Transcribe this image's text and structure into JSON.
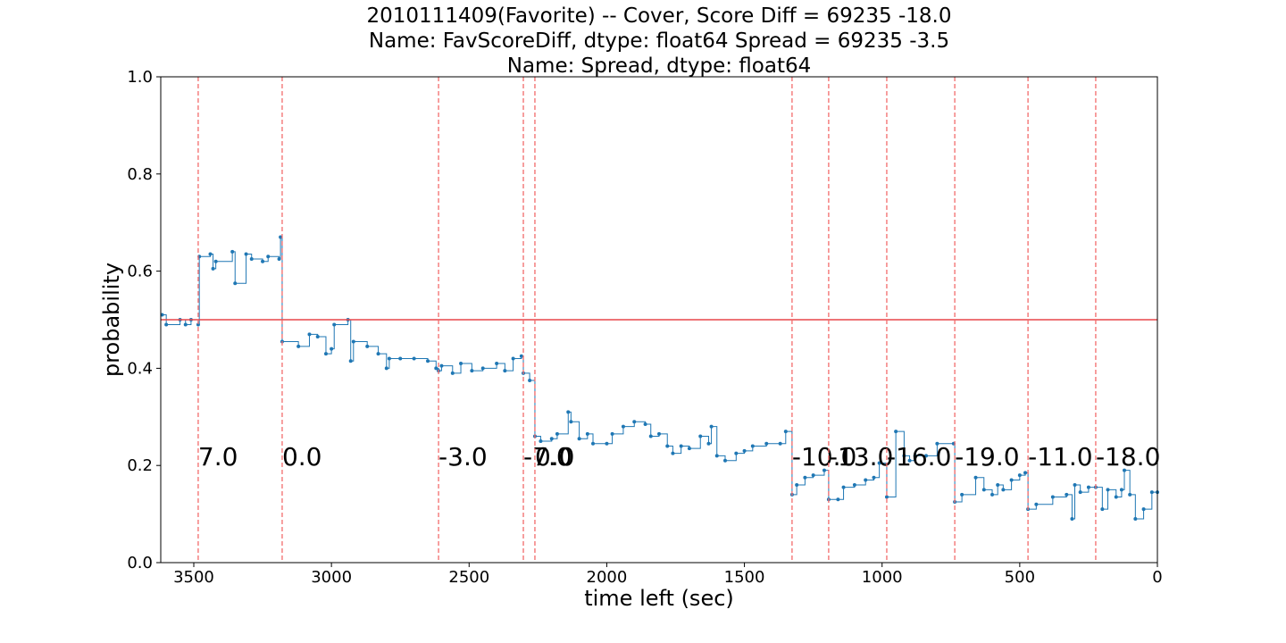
{
  "chart_data": {
    "type": "step",
    "title_lines": [
      "2010111409(Favorite) -- Cover, Score Diff = 69235   -18.0",
      "Name: FavScoreDiff, dtype: float64 Spread = 69235   -3.5",
      "Name: Spread, dtype: float64"
    ],
    "x_label": "time left (sec)",
    "y_label": "probability",
    "xlim": [
      3620,
      0
    ],
    "ylim": [
      0,
      1
    ],
    "xticks": [
      3500,
      3000,
      2500,
      2000,
      1500,
      1000,
      500,
      0
    ],
    "yticks": [
      {
        "value": 0,
        "label": "0.0"
      },
      0.2,
      0.4,
      0.6,
      0.8,
      {
        "value": 1,
        "label": "1.0"
      }
    ],
    "hline": {
      "y": 0.5,
      "color": "#e8474a"
    },
    "vline_color": "#f26b6b",
    "annotations": [
      {
        "x": 3484,
        "text": "7.0"
      },
      {
        "x": 3179,
        "text": "0.0"
      },
      {
        "x": 2611,
        "text": "-3.0"
      },
      {
        "x": 2303,
        "text": "-7.0"
      },
      {
        "x": 2261,
        "text": "0.0"
      },
      {
        "x": 1327,
        "text": "-10.0"
      },
      {
        "x": 1194,
        "text": "-13.0"
      },
      {
        "x": 983,
        "text": "-16.0"
      },
      {
        "x": 736,
        "text": "-19.0"
      },
      {
        "x": 470,
        "text": "-11.0"
      },
      {
        "x": 224,
        "text": "-18.0"
      }
    ],
    "series": [
      {
        "color": "#1f77b4",
        "x": [
          3615,
          3600,
          3550,
          3530,
          3510,
          3484,
          3480,
          3440,
          3430,
          3420,
          3360,
          3350,
          3310,
          3290,
          3250,
          3230,
          3190,
          3185,
          3179,
          3120,
          3080,
          3050,
          3020,
          3000,
          2990,
          2940,
          2930,
          2920,
          2870,
          2830,
          2800,
          2790,
          2750,
          2700,
          2650,
          2620,
          2611,
          2600,
          2560,
          2530,
          2490,
          2450,
          2400,
          2370,
          2340,
          2310,
          2303,
          2280,
          2261,
          2240,
          2200,
          2180,
          2140,
          2130,
          2100,
          2070,
          2050,
          2000,
          1980,
          1940,
          1900,
          1860,
          1840,
          1810,
          1780,
          1760,
          1730,
          1700,
          1660,
          1630,
          1620,
          1600,
          1570,
          1530,
          1500,
          1470,
          1420,
          1370,
          1350,
          1327,
          1310,
          1280,
          1250,
          1210,
          1194,
          1160,
          1140,
          1100,
          1060,
          1030,
          1010,
          983,
          950,
          920,
          900,
          880,
          840,
          800,
          740,
          736,
          710,
          660,
          630,
          600,
          580,
          560,
          530,
          500,
          480,
          470,
          440,
          380,
          330,
          310,
          300,
          280,
          250,
          224,
          200,
          180,
          150,
          130,
          120,
          100,
          80,
          50,
          20,
          0
        ],
        "values": [
          0.51,
          0.49,
          0.5,
          0.49,
          0.5,
          0.49,
          0.63,
          0.635,
          0.605,
          0.62,
          0.64,
          0.575,
          0.635,
          0.625,
          0.62,
          0.63,
          0.625,
          0.67,
          0.455,
          0.445,
          0.47,
          0.465,
          0.43,
          0.44,
          0.49,
          0.5,
          0.415,
          0.455,
          0.445,
          0.43,
          0.4,
          0.42,
          0.42,
          0.42,
          0.415,
          0.4,
          0.395,
          0.405,
          0.39,
          0.41,
          0.395,
          0.4,
          0.41,
          0.395,
          0.42,
          0.425,
          0.39,
          0.375,
          0.26,
          0.25,
          0.255,
          0.265,
          0.31,
          0.29,
          0.255,
          0.265,
          0.245,
          0.245,
          0.265,
          0.28,
          0.29,
          0.285,
          0.26,
          0.265,
          0.24,
          0.225,
          0.24,
          0.235,
          0.26,
          0.245,
          0.28,
          0.22,
          0.21,
          0.225,
          0.23,
          0.24,
          0.245,
          0.245,
          0.27,
          0.14,
          0.16,
          0.175,
          0.18,
          0.19,
          0.13,
          0.13,
          0.155,
          0.16,
          0.17,
          0.175,
          0.205,
          0.135,
          0.27,
          0.22,
          0.21,
          0.22,
          0.22,
          0.245,
          0.245,
          0.125,
          0.14,
          0.175,
          0.15,
          0.14,
          0.16,
          0.15,
          0.17,
          0.18,
          0.185,
          0.11,
          0.12,
          0.135,
          0.14,
          0.09,
          0.16,
          0.145,
          0.155,
          0.155,
          0.11,
          0.15,
          0.135,
          0.15,
          0.19,
          0.14,
          0.09,
          0.11,
          0.145,
          0.145
        ]
      }
    ]
  }
}
